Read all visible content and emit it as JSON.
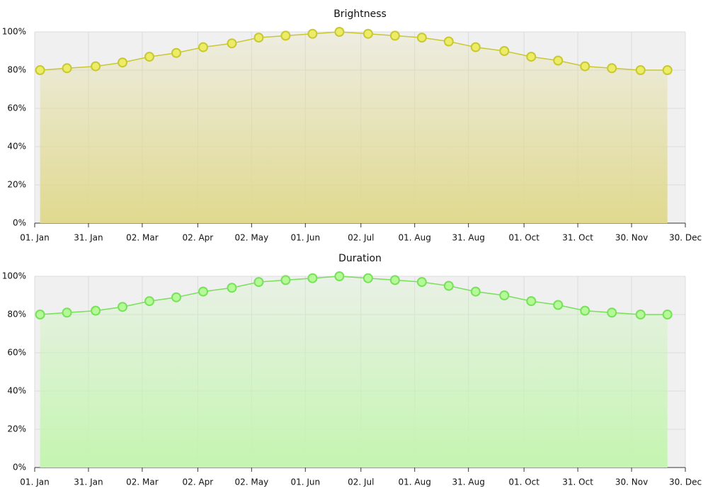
{
  "chart_data": [
    {
      "type": "area",
      "title": "Brightness",
      "x": [
        3,
        18,
        34,
        49,
        64,
        79,
        94,
        110,
        125,
        140,
        155,
        170,
        186,
        201,
        216,
        231,
        246,
        262,
        277,
        292,
        307,
        322,
        338,
        353
      ],
      "series": [
        {
          "color": "#c8c832",
          "marker_color": "#ecec66",
          "fill_color": "#e0d98f",
          "values": [
            80,
            81,
            82,
            84,
            87,
            89,
            92,
            94,
            97,
            98,
            99,
            100,
            99,
            98,
            97,
            95,
            92,
            90,
            87,
            85,
            82,
            81,
            80,
            80
          ]
        }
      ],
      "xlim": [
        0,
        363
      ],
      "xticks": [
        {
          "value": 0,
          "label": "01. Jan"
        },
        {
          "value": 30,
          "label": "31. Jan"
        },
        {
          "value": 60,
          "label": "02. Mar"
        },
        {
          "value": 91,
          "label": "02. Apr"
        },
        {
          "value": 121,
          "label": "02. May"
        },
        {
          "value": 151,
          "label": "01. Jun"
        },
        {
          "value": 182,
          "label": "02. Jul"
        },
        {
          "value": 212,
          "label": "01. Aug"
        },
        {
          "value": 242,
          "label": "31. Aug"
        },
        {
          "value": 273,
          "label": "01. Oct"
        },
        {
          "value": 303,
          "label": "31. Oct"
        },
        {
          "value": 333,
          "label": "30. Nov"
        },
        {
          "value": 363,
          "label": "30. Dec"
        }
      ],
      "ylim": [
        0,
        100
      ],
      "yticks": [
        {
          "value": 0,
          "label": "0%"
        },
        {
          "value": 20,
          "label": "20%"
        },
        {
          "value": 40,
          "label": "40%"
        },
        {
          "value": 60,
          "label": "60%"
        },
        {
          "value": 80,
          "label": "80%"
        },
        {
          "value": 100,
          "label": "100%"
        }
      ],
      "grid": true
    },
    {
      "type": "area",
      "title": "Duration",
      "x": [
        3,
        18,
        34,
        49,
        64,
        79,
        94,
        110,
        125,
        140,
        155,
        170,
        186,
        201,
        216,
        231,
        246,
        262,
        277,
        292,
        307,
        322,
        338,
        353
      ],
      "series": [
        {
          "color": "#78e05a",
          "marker_color": "#b4fa96",
          "fill_color": "#c4f5b0",
          "values": [
            80,
            81,
            82,
            84,
            87,
            89,
            92,
            94,
            97,
            98,
            99,
            100,
            99,
            98,
            97,
            95,
            92,
            90,
            87,
            85,
            82,
            81,
            80,
            80
          ]
        }
      ],
      "xlim": [
        0,
        363
      ],
      "xticks": [
        {
          "value": 0,
          "label": "01. Jan"
        },
        {
          "value": 30,
          "label": "31. Jan"
        },
        {
          "value": 60,
          "label": "02. Mar"
        },
        {
          "value": 91,
          "label": "02. Apr"
        },
        {
          "value": 121,
          "label": "02. May"
        },
        {
          "value": 151,
          "label": "01. Jun"
        },
        {
          "value": 182,
          "label": "02. Jul"
        },
        {
          "value": 212,
          "label": "01. Aug"
        },
        {
          "value": 242,
          "label": "31. Aug"
        },
        {
          "value": 273,
          "label": "01. Oct"
        },
        {
          "value": 303,
          "label": "31. Oct"
        },
        {
          "value": 333,
          "label": "30. Nov"
        },
        {
          "value": 363,
          "label": "30. Dec"
        }
      ],
      "ylim": [
        0,
        100
      ],
      "yticks": [
        {
          "value": 0,
          "label": "0%"
        },
        {
          "value": 20,
          "label": "20%"
        },
        {
          "value": 40,
          "label": "40%"
        },
        {
          "value": 60,
          "label": "60%"
        },
        {
          "value": 80,
          "label": "80%"
        },
        {
          "value": 100,
          "label": "100%"
        }
      ],
      "grid": true
    }
  ]
}
